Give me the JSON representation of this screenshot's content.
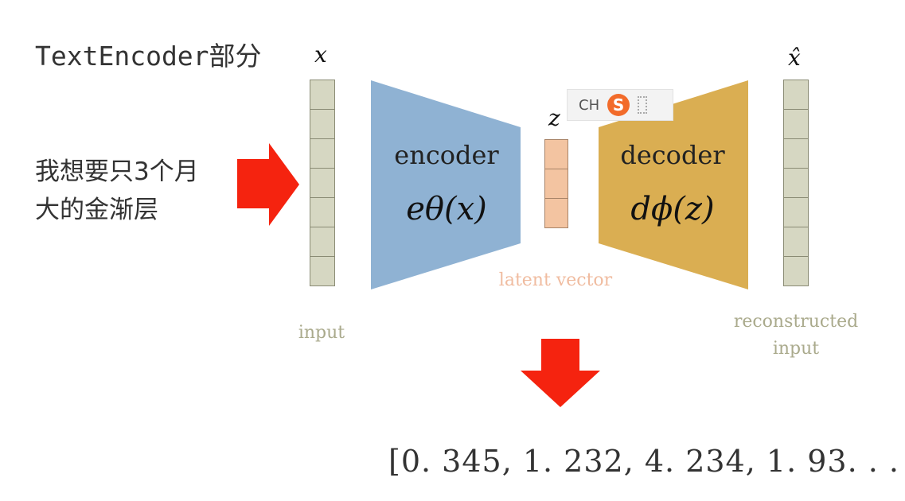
{
  "title": "TextEncoder部分",
  "note_lines": [
    "我想要只3个月",
    "大的金渐层"
  ],
  "diagram": {
    "input_var": "x",
    "latent_var": "z",
    "output_var": "x̂",
    "encoder": {
      "label": "encoder",
      "formula": "eθ(x)"
    },
    "decoder": {
      "label": "decoder",
      "formula": "dϕ(z)"
    },
    "input_caption": "input",
    "latent_caption": "latent vector",
    "output_caption_lines": [
      "reconstructed",
      "input"
    ],
    "input_cells": 7,
    "latent_cells": 3,
    "output_cells": 7
  },
  "ime": {
    "lang": "CH",
    "logo_letter": "S"
  },
  "vector_text": "[0. 345, 1. 232, 4. 234, 1. 93. . . ]",
  "colors": {
    "encoder": "#8fb2d3",
    "decoder": "#daae52",
    "arrow": "#f5230f",
    "input_cell": "#d6d7c2",
    "latent_cell": "#f3c4a1"
  }
}
